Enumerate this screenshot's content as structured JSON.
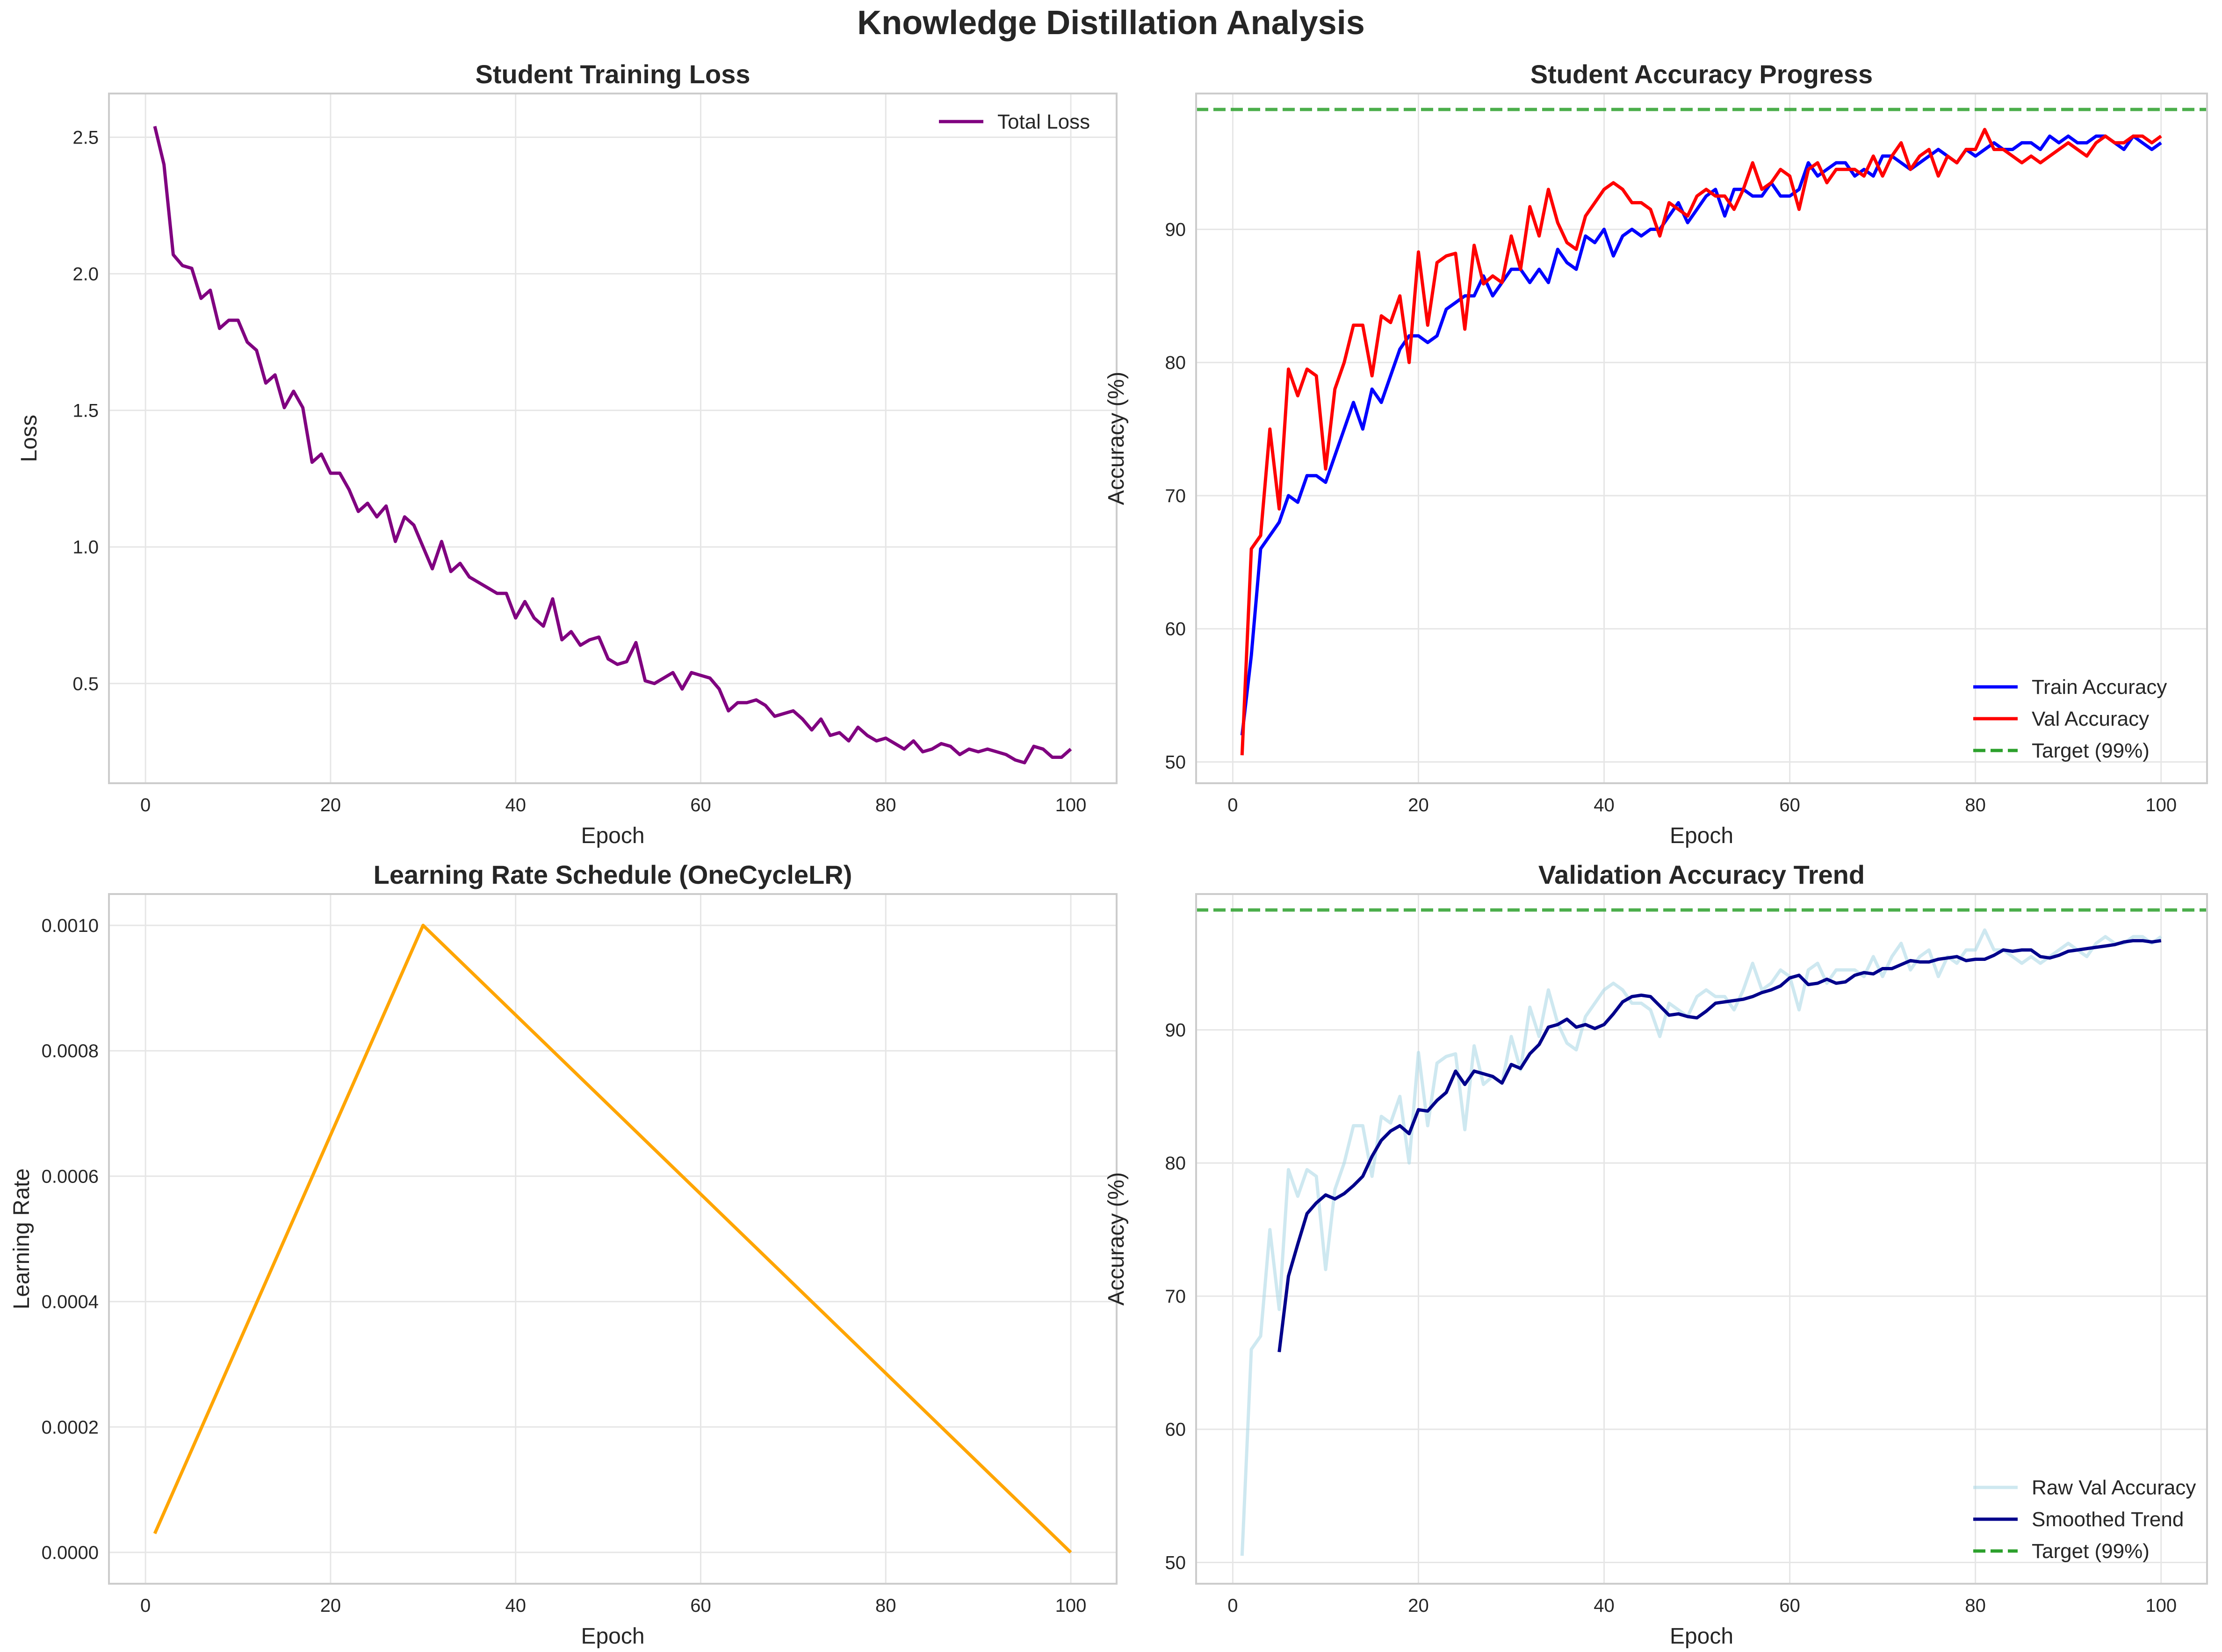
{
  "figure": {
    "suptitle": "Knowledge Distillation Analysis"
  },
  "colors": {
    "loss": "#800080",
    "train": "#0000ff",
    "val": "#ff0000",
    "target": "#2ca02c",
    "lr": "#ffa500",
    "raw": "#add8e6",
    "smooth": "#00008b",
    "grid": "#e6e6e6",
    "frame": "#cccccc",
    "text": "#262626"
  },
  "chart_data": [
    {
      "type": "line",
      "title": "Student Training Loss",
      "xlabel": "Epoch",
      "ylabel": "Loss",
      "xlim": [
        -3.95,
        104.95
      ],
      "ylim": [
        0.135,
        2.66
      ],
      "xticks": [
        0,
        20,
        40,
        60,
        80,
        100
      ],
      "yticks": [
        0.5,
        1.0,
        1.5,
        2.0,
        2.5
      ],
      "ytick_labels": [
        "0.5",
        "1.0",
        "1.5",
        "2.0",
        "2.5"
      ],
      "grid": true,
      "legend": "upper right",
      "series": [
        {
          "name": "Total Loss",
          "color": "#800080",
          "x_start": 1,
          "x_step": 1,
          "values": [
            2.54,
            2.4,
            2.07,
            2.03,
            2.02,
            1.91,
            1.94,
            1.8,
            1.83,
            1.83,
            1.75,
            1.72,
            1.6,
            1.63,
            1.51,
            1.57,
            1.51,
            1.31,
            1.34,
            1.27,
            1.27,
            1.21,
            1.13,
            1.16,
            1.11,
            1.15,
            1.02,
            1.11,
            1.08,
            1.0,
            0.92,
            1.02,
            0.91,
            0.94,
            0.89,
            0.87,
            0.85,
            0.83,
            0.83,
            0.74,
            0.8,
            0.74,
            0.71,
            0.81,
            0.66,
            0.69,
            0.64,
            0.66,
            0.67,
            0.59,
            0.57,
            0.58,
            0.65,
            0.51,
            0.5,
            0.52,
            0.54,
            0.48,
            0.54,
            0.53,
            0.52,
            0.48,
            0.4,
            0.43,
            0.43,
            0.44,
            0.42,
            0.38,
            0.39,
            0.4,
            0.37,
            0.33,
            0.37,
            0.31,
            0.32,
            0.29,
            0.34,
            0.31,
            0.29,
            0.3,
            0.28,
            0.26,
            0.29,
            0.25,
            0.26,
            0.28,
            0.27,
            0.24,
            0.26,
            0.25,
            0.26,
            0.25,
            0.24,
            0.22,
            0.21,
            0.27,
            0.26,
            0.23,
            0.23,
            0.26
          ]
        }
      ]
    },
    {
      "type": "line",
      "title": "Student Accuracy Progress",
      "xlabel": "Epoch",
      "ylabel": "Accuracy (%)",
      "xlim": [
        -3.95,
        104.95
      ],
      "ylim": [
        48.4,
        100.2
      ],
      "xticks": [
        0,
        20,
        40,
        60,
        80,
        100
      ],
      "yticks": [
        50,
        60,
        70,
        80,
        90
      ],
      "ytick_labels": [
        "50",
        "60",
        "70",
        "80",
        "90"
      ],
      "grid": true,
      "legend": "lower right",
      "series": [
        {
          "name": "Train Accuracy",
          "color": "#0000ff",
          "x_start": 1,
          "x_step": 1,
          "values": [
            52.0,
            58.0,
            66.0,
            67.0,
            68.0,
            70.0,
            69.5,
            71.5,
            71.5,
            71.0,
            73.0,
            75.0,
            77.0,
            75.0,
            78.0,
            77.0,
            79.0,
            81.0,
            82.0,
            82.0,
            81.5,
            82.0,
            84.0,
            84.5,
            85.0,
            85.0,
            86.5,
            85.0,
            86.0,
            87.0,
            87.0,
            86.0,
            87.0,
            86.0,
            88.5,
            87.5,
            87.0,
            89.5,
            89.0,
            90.0,
            88.0,
            89.5,
            90.0,
            89.5,
            90.0,
            90.0,
            91.0,
            92.0,
            90.5,
            91.5,
            92.5,
            93.0,
            91.0,
            93.0,
            93.0,
            92.5,
            92.5,
            93.5,
            92.5,
            92.5,
            93.0,
            95.0,
            94.0,
            94.5,
            95.0,
            95.0,
            94.0,
            94.5,
            94.0,
            95.5,
            95.5,
            95.0,
            94.5,
            95.0,
            95.5,
            96.0,
            95.5,
            95.0,
            96.0,
            95.5,
            96.0,
            96.5,
            96.0,
            96.0,
            96.5,
            96.5,
            96.0,
            97.0,
            96.5,
            97.0,
            96.5,
            96.5,
            97.0,
            97.0,
            96.5,
            96.0,
            97.0,
            96.5,
            96.0,
            96.5
          ]
        },
        {
          "name": "Val Accuracy",
          "color": "#ff0000",
          "x_start": 1,
          "x_step": 1,
          "values": [
            50.5,
            66.0,
            67.0,
            75.0,
            69.0,
            79.5,
            77.5,
            79.5,
            79.0,
            72.0,
            78.0,
            80.0,
            82.8,
            82.8,
            79.0,
            83.5,
            83.0,
            85.0,
            80.0,
            88.3,
            82.8,
            87.5,
            88.0,
            88.2,
            82.5,
            88.8,
            85.9,
            86.5,
            86.0,
            89.5,
            87.0,
            91.7,
            89.5,
            93.0,
            90.5,
            89.0,
            88.5,
            91.0,
            92.0,
            93.0,
            93.5,
            93.0,
            92.0,
            92.0,
            91.5,
            89.5,
            92.0,
            91.5,
            91.0,
            92.5,
            93.0,
            92.5,
            92.5,
            91.5,
            93.0,
            95.0,
            93.0,
            93.5,
            94.5,
            94.0,
            91.5,
            94.5,
            95.0,
            93.5,
            94.5,
            94.5,
            94.5,
            94.0,
            95.5,
            94.0,
            95.5,
            96.5,
            94.5,
            95.5,
            96.0,
            94.0,
            95.5,
            95.0,
            96.0,
            96.0,
            97.5,
            96.0,
            96.0,
            95.5,
            95.0,
            95.5,
            95.0,
            95.5,
            96.0,
            96.5,
            96.0,
            95.5,
            96.5,
            97.0,
            96.5,
            96.5,
            97.0,
            97.0,
            96.5,
            97.0
          ]
        },
        {
          "name": "Target (99%)",
          "color": "#2ca02c",
          "dashed": true,
          "hline": 99
        }
      ]
    },
    {
      "type": "line",
      "title": "Learning Rate Schedule (OneCycleLR)",
      "xlabel": "Epoch",
      "ylabel": "Learning Rate",
      "xlim": [
        -3.95,
        104.95
      ],
      "ylim": [
        -5e-05,
        0.00105
      ],
      "xticks": [
        0,
        20,
        40,
        60,
        80,
        100
      ],
      "yticks": [
        0,
        0.0002,
        0.0004,
        0.0006,
        0.0008,
        0.001
      ],
      "ytick_labels": [
        "0.0000",
        "0.0002",
        "0.0004",
        "0.0006",
        "0.0008",
        "0.0010"
      ],
      "grid": true,
      "series": [
        {
          "name": "",
          "color": "#ffa500",
          "x": [
            1,
            30,
            100
          ],
          "values": [
            3e-05,
            0.001,
            0.0
          ]
        }
      ]
    },
    {
      "type": "line",
      "title": "Validation Accuracy Trend",
      "xlabel": "Epoch",
      "ylabel": "Accuracy (%)",
      "xlim": [
        -3.95,
        104.95
      ],
      "ylim": [
        48.4,
        100.2
      ],
      "xticks": [
        0,
        20,
        40,
        60,
        80,
        100
      ],
      "yticks": [
        50,
        60,
        70,
        80,
        90
      ],
      "ytick_labels": [
        "50",
        "60",
        "70",
        "80",
        "90"
      ],
      "grid": true,
      "legend": "lower right",
      "series": [
        {
          "name": "Raw Val Accuracy",
          "color": "#add8e6",
          "alpha": 0.6,
          "x_start": 1,
          "x_step": 1,
          "values": [
            50.5,
            66.0,
            67.0,
            75.0,
            69.0,
            79.5,
            77.5,
            79.5,
            79.0,
            72.0,
            78.0,
            80.0,
            82.8,
            82.8,
            79.0,
            83.5,
            83.0,
            85.0,
            80.0,
            88.3,
            82.8,
            87.5,
            88.0,
            88.2,
            82.5,
            88.8,
            85.9,
            86.5,
            86.0,
            89.5,
            87.0,
            91.7,
            89.5,
            93.0,
            90.5,
            89.0,
            88.5,
            91.0,
            92.0,
            93.0,
            93.5,
            93.0,
            92.0,
            92.0,
            91.5,
            89.5,
            92.0,
            91.5,
            91.0,
            92.5,
            93.0,
            92.5,
            92.5,
            91.5,
            93.0,
            95.0,
            93.0,
            93.5,
            94.5,
            94.0,
            91.5,
            94.5,
            95.0,
            93.5,
            94.5,
            94.5,
            94.5,
            94.0,
            95.5,
            94.0,
            95.5,
            96.5,
            94.5,
            95.5,
            96.0,
            94.0,
            95.5,
            95.0,
            96.0,
            96.0,
            97.5,
            96.0,
            96.0,
            95.5,
            95.0,
            95.5,
            95.0,
            95.5,
            96.0,
            96.5,
            96.0,
            95.5,
            96.5,
            97.0,
            96.5,
            96.5,
            97.0,
            97.0,
            96.5,
            97.0
          ]
        },
        {
          "name": "Smoothed Trend",
          "color": "#00008b",
          "x_start": 5,
          "x_step": 1,
          "values": [
            65.8,
            71.5,
            73.9,
            76.2,
            77.0,
            77.6,
            77.3,
            77.7,
            78.3,
            79.0,
            80.5,
            81.7,
            82.4,
            82.8,
            82.2,
            84.0,
            83.9,
            84.7,
            85.3,
            86.9,
            85.9,
            86.9,
            86.7,
            86.5,
            86.0,
            87.4,
            87.1,
            88.2,
            88.9,
            90.2,
            90.4,
            90.8,
            90.2,
            90.4,
            90.1,
            90.4,
            91.2,
            92.1,
            92.5,
            92.6,
            92.5,
            91.8,
            91.1,
            91.2,
            91.0,
            90.9,
            91.4,
            92.0,
            92.1,
            92.2,
            92.3,
            92.5,
            92.8,
            93.0,
            93.3,
            93.9,
            94.1,
            93.4,
            93.5,
            93.8,
            93.5,
            93.6,
            94.1,
            94.3,
            94.2,
            94.6,
            94.6,
            94.9,
            95.2,
            95.1,
            95.1,
            95.3,
            95.4,
            95.5,
            95.2,
            95.3,
            95.3,
            95.6,
            96.0,
            95.9,
            96.0,
            96.0,
            95.5,
            95.4,
            95.6,
            95.9,
            96.0,
            96.1,
            96.2,
            96.3,
            96.4,
            96.6,
            96.7,
            96.7,
            96.6,
            96.7
          ]
        },
        {
          "name": "Target (99%)",
          "color": "#2ca02c",
          "dashed": true,
          "hline": 99
        }
      ]
    }
  ]
}
